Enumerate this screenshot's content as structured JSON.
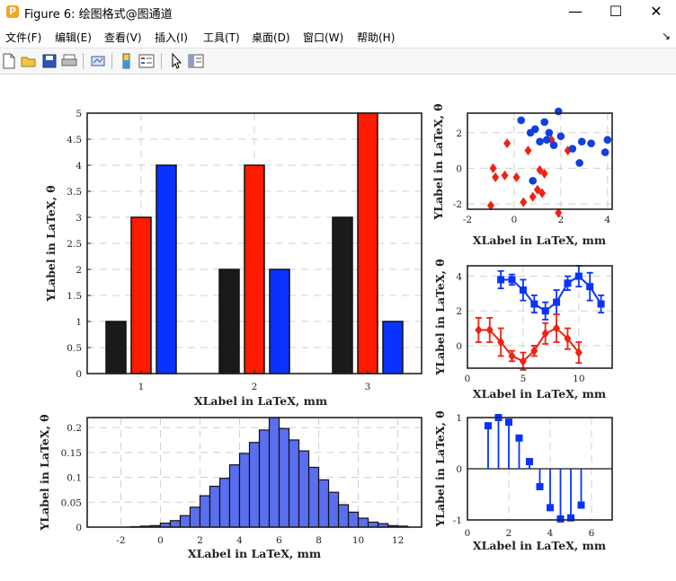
{
  "window": {
    "title": "Figure 6: 绘图格式@图通道",
    "app_icon_letter": "P",
    "minimize": "—",
    "maximize": "☐",
    "close": "✕"
  },
  "menu": {
    "items": [
      "文件(F)",
      "编辑(E)",
      "查看(V)",
      "插入(I)",
      "工具(T)",
      "桌面(D)",
      "窗口(W)",
      "帮助(H)"
    ],
    "overflow": "↘"
  },
  "toolbar": {
    "buttons": [
      "new-figure-icon",
      "open-file-icon",
      "save-icon",
      "print-icon",
      "link-plot-icon",
      "colorbar-icon",
      "legend-icon",
      "pointer-icon",
      "property-inspector-icon"
    ]
  },
  "colors": {
    "black": "#1a1a1a",
    "red": "#ff1a00",
    "blue": "#0a32ff",
    "hist": "#5a6ef0",
    "diamond": "#ee2211",
    "dot": "#1040e0"
  },
  "chart_data": [
    {
      "type": "bar",
      "title": "",
      "xlabel": "XLabel in LaTeX, mm",
      "ylabel": "YLabel in LaTeX, θ",
      "categories": [
        "1",
        "2",
        "3"
      ],
      "series": [
        {
          "values": [
            1,
            2,
            3
          ]
        },
        {
          "values": [
            3,
            4,
            5
          ]
        },
        {
          "values": [
            4,
            2,
            1
          ]
        }
      ],
      "ylim": [
        0,
        5
      ],
      "yticks": [
        "0",
        "0.5",
        "1",
        "1.5",
        "2",
        "2.5",
        "3",
        "3.5",
        "4",
        "4.5",
        "5"
      ],
      "grid": true
    },
    {
      "type": "scatter",
      "xlabel": "XLabel in LaTeX, mm",
      "ylabel": "YLabel in LaTeX, θ",
      "xlim": [
        -2,
        4.2
      ],
      "ylim": [
        -2.3,
        3.1
      ],
      "xticks": [
        "-2",
        "0",
        "2",
        "4"
      ],
      "yticks": [
        "-2",
        "0",
        "2"
      ],
      "grid": true,
      "series": [
        {
          "marker": "diamond",
          "x": [
            -1.0,
            -0.8,
            -0.9,
            -0.4,
            -0.3,
            0.1,
            0.4,
            0.6,
            0.8,
            1.0,
            1.1,
            1.2,
            1.3,
            1.6,
            1.9,
            2.3
          ],
          "y": [
            -2.1,
            -0.5,
            0.0,
            -0.4,
            1.4,
            -0.5,
            -1.9,
            1.0,
            -1.6,
            -1.2,
            -0.1,
            -1.4,
            -0.3,
            1.6,
            -2.5,
            1.0
          ]
        },
        {
          "marker": "circle",
          "x": [
            0.3,
            0.7,
            0.9,
            1.1,
            1.3,
            1.4,
            1.5,
            1.7,
            1.9,
            2.0,
            2.5,
            2.8,
            2.9,
            3.3,
            3.9,
            4.0,
            0.8
          ],
          "y": [
            2.7,
            2.0,
            2.2,
            1.5,
            2.6,
            1.6,
            2.0,
            1.3,
            3.2,
            1.8,
            1.1,
            0.3,
            1.5,
            1.4,
            0.9,
            1.6,
            -0.7
          ]
        }
      ]
    },
    {
      "type": "line",
      "xlabel": "XLabel in LaTeX, mm",
      "ylabel": "YLabel in LaTeX, θ",
      "xlim": [
        0,
        13
      ],
      "ylim": [
        -1.3,
        4.6
      ],
      "xticks": [
        "0",
        "5",
        "10"
      ],
      "yticks": [
        "0",
        "2",
        "4"
      ],
      "grid": true,
      "series": [
        {
          "marker": "square",
          "x": [
            3,
            4,
            5,
            6,
            7,
            8,
            9,
            10,
            11,
            12
          ],
          "y": [
            3.8,
            3.8,
            3.2,
            2.4,
            2.0,
            2.5,
            3.6,
            4.0,
            3.4,
            2.4
          ],
          "err": [
            0.5,
            0.3,
            0.6,
            0.5,
            0.5,
            0.7,
            0.4,
            0.6,
            0.8,
            0.5
          ]
        },
        {
          "marker": "diamond",
          "x": [
            1,
            2,
            3,
            4,
            5,
            6,
            7,
            8,
            9,
            10
          ],
          "y": [
            0.9,
            0.9,
            0.2,
            -0.6,
            -0.9,
            -0.3,
            0.7,
            1.0,
            0.4,
            -0.4
          ],
          "err": [
            0.7,
            0.7,
            0.8,
            0.3,
            0.5,
            0.3,
            0.6,
            0.8,
            0.6,
            0.6
          ]
        }
      ]
    },
    {
      "type": "bar",
      "subtype": "histogram",
      "xlabel": "XLabel in LaTeX, mm",
      "ylabel": "YLabel in LaTeX, θ",
      "xlim": [
        -3.7,
        13.2
      ],
      "ylim": [
        0,
        0.22
      ],
      "xticks": [
        "-2",
        "0",
        "2",
        "4",
        "6",
        "8",
        "10",
        "12"
      ],
      "yticks": [
        "0",
        "0.05",
        "0.1",
        "0.15",
        "0.2"
      ],
      "bin_width": 0.5,
      "bin_edges_start": -1.5,
      "values": [
        0.001,
        0.002,
        0.003,
        0.008,
        0.013,
        0.023,
        0.04,
        0.063,
        0.082,
        0.098,
        0.125,
        0.148,
        0.17,
        0.195,
        0.22,
        0.198,
        0.175,
        0.153,
        0.12,
        0.095,
        0.07,
        0.045,
        0.03,
        0.018,
        0.01,
        0.007,
        0.003,
        0.002
      ],
      "grid": true
    },
    {
      "type": "scatter",
      "subtype": "stem",
      "xlabel": "XLabel in LaTeX, mm",
      "ylabel": "YLabel in LaTeX, θ",
      "xlim": [
        0,
        7
      ],
      "ylim": [
        -1,
        1
      ],
      "xticks": [
        "0",
        "2",
        "4",
        "6"
      ],
      "yticks": [
        "-1",
        "0",
        "1"
      ],
      "grid": true,
      "x": [
        1.0,
        1.5,
        2.0,
        2.5,
        3.0,
        3.5,
        4.0,
        4.5,
        5.0,
        5.5
      ],
      "y": [
        0.84,
        1.0,
        0.91,
        0.6,
        0.14,
        -0.35,
        -0.76,
        -0.98,
        -0.96,
        -0.71
      ]
    }
  ]
}
